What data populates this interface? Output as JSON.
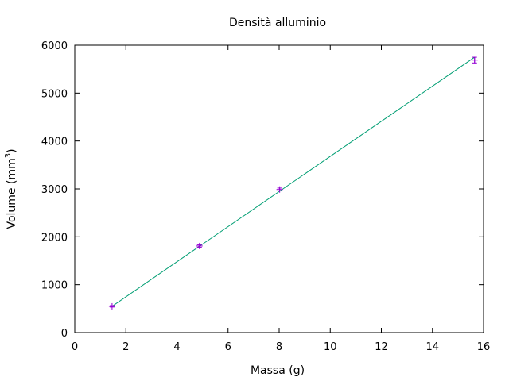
{
  "chart_data": {
    "type": "scatter",
    "title": "Densità alluminio",
    "xlabel": "Massa (g)",
    "ylabel_main": "Volume (mm",
    "ylabel_sup": "3",
    "ylabel_close": ")",
    "xlim": [
      0,
      16
    ],
    "ylim": [
      0,
      6000
    ],
    "xticks": [
      0,
      2,
      4,
      6,
      8,
      10,
      12,
      14,
      16
    ],
    "yticks": [
      0,
      1000,
      2000,
      3000,
      4000,
      5000,
      6000
    ],
    "grid": false,
    "points": [
      {
        "x": 1.46,
        "y": 548,
        "yerr": 15
      },
      {
        "x": 4.88,
        "y": 1808,
        "yerr": 25
      },
      {
        "x": 8.02,
        "y": 2988,
        "yerr": 30
      },
      {
        "x": 15.65,
        "y": 5690,
        "yerr": 60
      }
    ],
    "fit_line": {
      "x": [
        1.46,
        15.65
      ],
      "y": [
        548,
        5750
      ]
    },
    "colors": {
      "points": "#9400d3",
      "errorbar": "#9400d3",
      "fit": "#009e73",
      "axes": "#000000"
    }
  }
}
